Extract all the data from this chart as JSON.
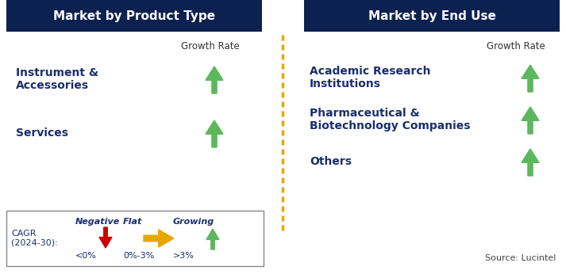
{
  "title_left": "Market by Product Type",
  "title_right": "Market by End Use",
  "header_bg": "#0d2150",
  "header_text_color": "#ffffff",
  "left_items": [
    "Instrument &\nAccessories",
    "Services"
  ],
  "right_items": [
    "Academic Research\nInstitutions",
    "Pharmaceutical &\nBiotechnology Companies",
    "Others"
  ],
  "growth_rate_label": "Growth Rate",
  "item_text_color": "#1a2e6e",
  "green_arrow_color": "#5cb85c",
  "red_arrow_color": "#cc0000",
  "yellow_arrow_color": "#e6a800",
  "legend_cagr": "CAGR\n(2024-30):",
  "legend_items": [
    {
      "label": "Negative",
      "sublabel": "<0%",
      "arrow": "down",
      "color": "#cc0000"
    },
    {
      "label": "Flat",
      "sublabel": "0%-3%",
      "arrow": "right",
      "color": "#e6a800"
    },
    {
      "label": "Growing",
      "sublabel": ">3%",
      "arrow": "up",
      "color": "#5cb85c"
    }
  ],
  "source_text": "Source: Lucintel",
  "dashed_line_color": "#e6a800",
  "background_color": "#ffffff"
}
